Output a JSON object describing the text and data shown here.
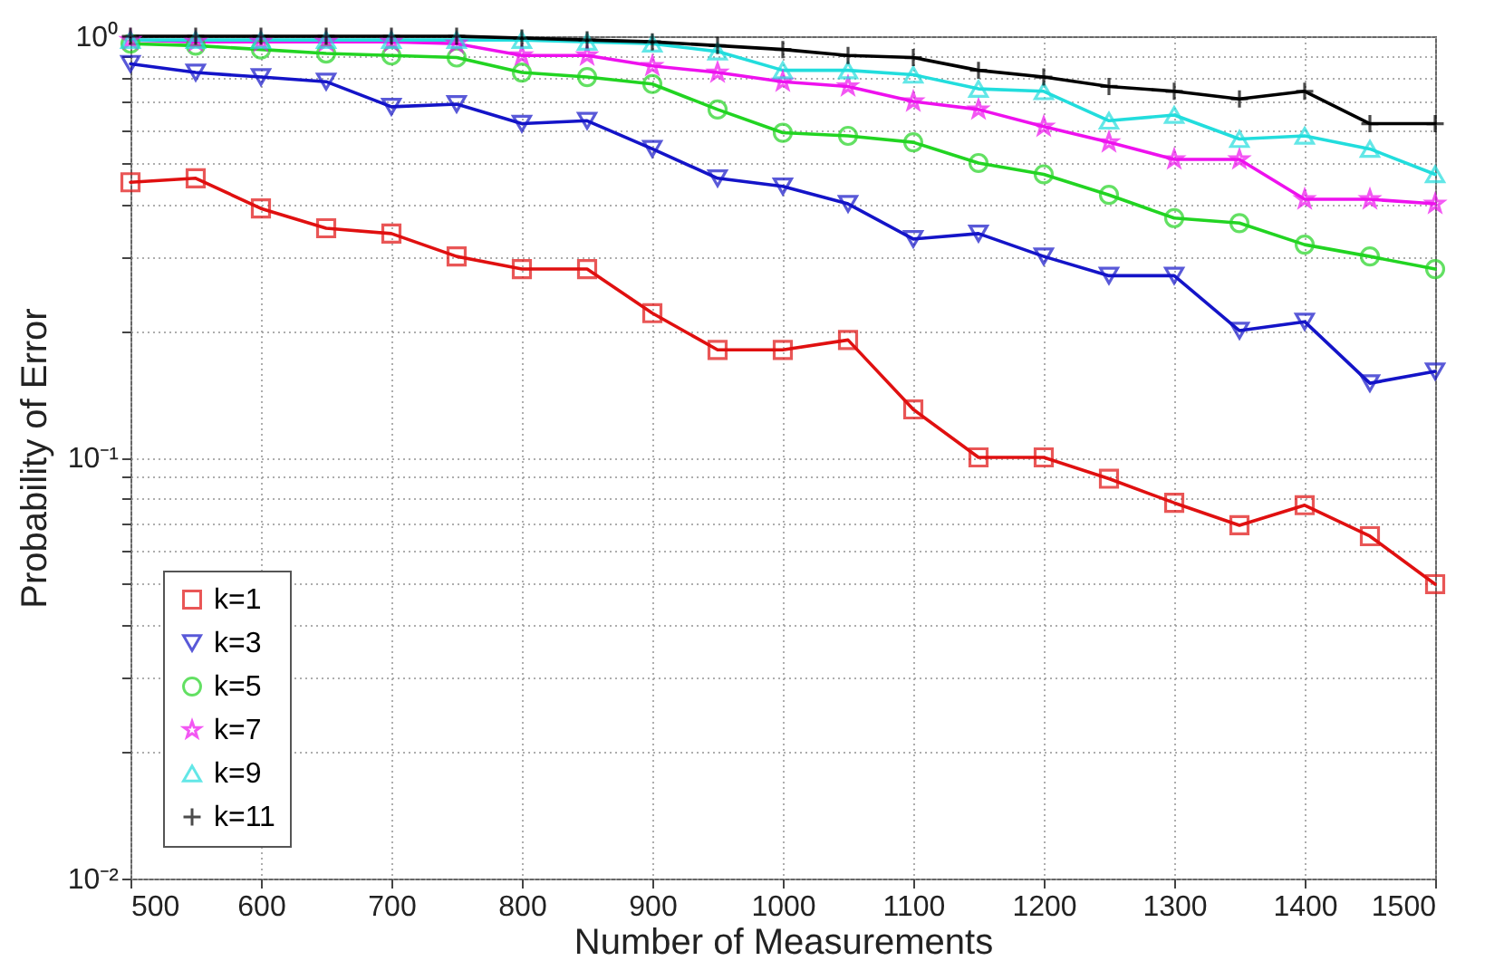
{
  "chart_data": {
    "type": "line",
    "xlabel": "Number of Measurements",
    "ylabel": "Probability of Error",
    "x": [
      500,
      550,
      600,
      650,
      700,
      750,
      800,
      850,
      900,
      950,
      1000,
      1050,
      1100,
      1150,
      1200,
      1250,
      1300,
      1350,
      1400,
      1450,
      1500
    ],
    "series": [
      {
        "name": "k=1",
        "color": "#e01010",
        "marker": "square",
        "values": [
          0.45,
          0.46,
          0.39,
          0.35,
          0.34,
          0.3,
          0.28,
          0.28,
          0.22,
          0.18,
          0.18,
          0.19,
          0.13,
          0.1,
          0.1,
          0.089,
          0.078,
          0.069,
          0.077,
          0.065,
          0.05
        ]
      },
      {
        "name": "k=3",
        "color": "#1414c8",
        "marker": "triangle-down",
        "values": [
          0.86,
          0.82,
          0.8,
          0.78,
          0.68,
          0.69,
          0.62,
          0.63,
          0.54,
          0.46,
          0.44,
          0.4,
          0.33,
          0.34,
          0.3,
          0.27,
          0.27,
          0.2,
          0.21,
          0.15,
          0.16
        ]
      },
      {
        "name": "k=5",
        "color": "#22d422",
        "marker": "circle",
        "values": [
          0.96,
          0.95,
          0.93,
          0.91,
          0.9,
          0.89,
          0.82,
          0.8,
          0.77,
          0.67,
          0.59,
          0.58,
          0.56,
          0.5,
          0.47,
          0.42,
          0.37,
          0.36,
          0.32,
          0.3,
          0.28
        ]
      },
      {
        "name": "k=7",
        "color": "#ee11ee",
        "marker": "star",
        "values": [
          0.98,
          0.97,
          0.97,
          0.97,
          0.97,
          0.96,
          0.9,
          0.9,
          0.85,
          0.82,
          0.78,
          0.76,
          0.7,
          0.67,
          0.61,
          0.56,
          0.51,
          0.51,
          0.41,
          0.41,
          0.4
        ]
      },
      {
        "name": "k=9",
        "color": "#22dddd",
        "marker": "triangle",
        "values": [
          0.98,
          0.98,
          0.98,
          0.98,
          0.98,
          0.98,
          0.98,
          0.97,
          0.96,
          0.92,
          0.83,
          0.83,
          0.81,
          0.75,
          0.74,
          0.63,
          0.65,
          0.57,
          0.58,
          0.54,
          0.47
        ]
      },
      {
        "name": "k=11",
        "color": "#000000",
        "marker": "cross",
        "values": [
          1.0,
          1.0,
          1.0,
          1.0,
          1.0,
          1.0,
          0.99,
          0.98,
          0.97,
          0.95,
          0.93,
          0.9,
          0.89,
          0.83,
          0.8,
          0.76,
          0.74,
          0.71,
          0.74,
          0.62,
          0.62
        ]
      }
    ],
    "xlim": [
      500,
      1500
    ],
    "xticks": [
      500,
      600,
      700,
      800,
      900,
      1000,
      1100,
      1200,
      1300,
      1400,
      1500
    ],
    "ylim": [
      0.01,
      1
    ],
    "yticks": [
      {
        "value": 0.01,
        "label": "10⁻²"
      },
      {
        "value": 0.02,
        "label": null
      },
      {
        "value": 0.03,
        "label": null
      },
      {
        "value": 0.04,
        "label": null
      },
      {
        "value": 0.05,
        "label": null
      },
      {
        "value": 0.06,
        "label": null
      },
      {
        "value": 0.07,
        "label": null
      },
      {
        "value": 0.08,
        "label": null
      },
      {
        "value": 0.09,
        "label": null
      },
      {
        "value": 0.1,
        "label": "10⁻¹"
      },
      {
        "value": 0.2,
        "label": null
      },
      {
        "value": 0.3,
        "label": null
      },
      {
        "value": 0.4,
        "label": null
      },
      {
        "value": 0.5,
        "label": null
      },
      {
        "value": 0.6,
        "label": null
      },
      {
        "value": 0.7,
        "label": null
      },
      {
        "value": 0.8,
        "label": null
      },
      {
        "value": 0.9,
        "label": null
      },
      {
        "value": 1,
        "label": "10⁰"
      }
    ],
    "log": "y",
    "grid": true,
    "legend": "bottom left"
  }
}
